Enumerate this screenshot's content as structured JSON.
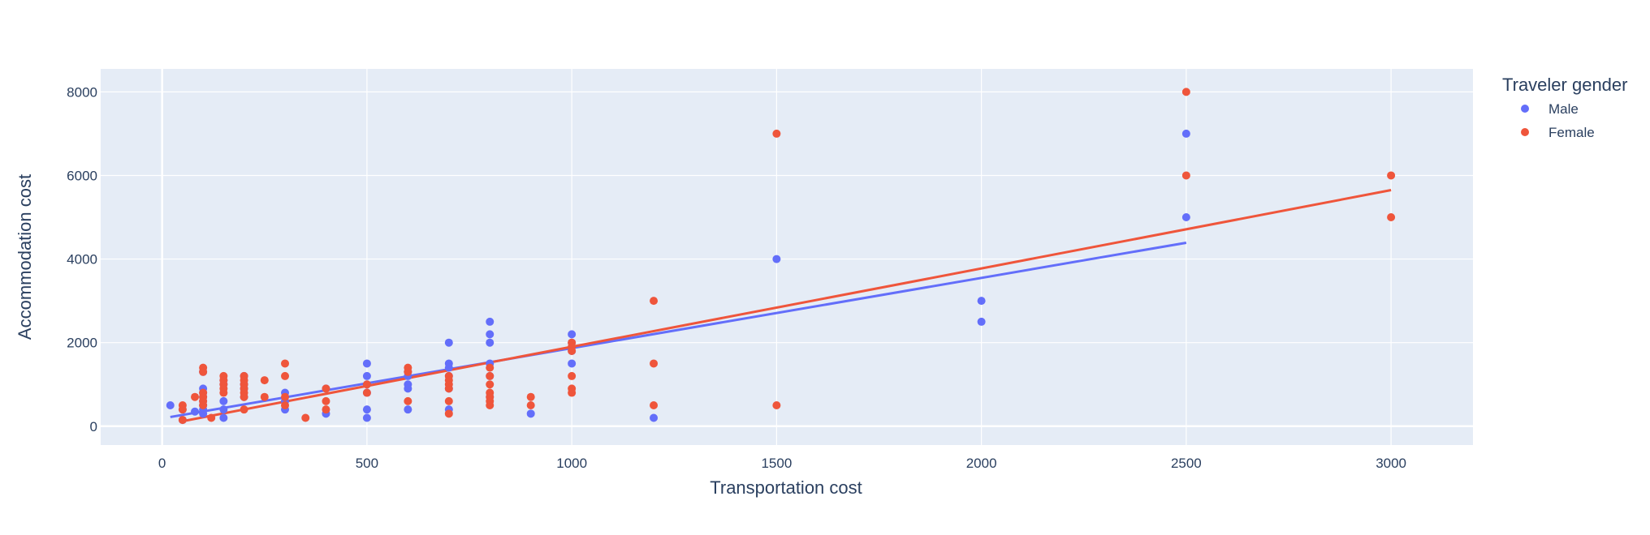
{
  "chart_data": {
    "type": "scatter",
    "xlabel": "Transportation cost",
    "ylabel": "Accommodation cost",
    "xlim": [
      -150,
      3200
    ],
    "ylim": [
      -450,
      8550
    ],
    "xticks": [
      0,
      500,
      1000,
      1500,
      2000,
      2500,
      3000
    ],
    "xtick_labels": [
      "0",
      "500",
      "1000",
      "1500",
      "2000",
      "2500",
      "3000"
    ],
    "yticks": [
      0,
      2000,
      4000,
      6000,
      8000
    ],
    "ytick_labels": [
      "0",
      "2000",
      "4000",
      "6000",
      "8000"
    ],
    "grid": true,
    "plot_background": "#e5ecf6",
    "legend": {
      "title": "Traveler gender",
      "placement": "right"
    },
    "series": [
      {
        "name": "Male",
        "color": "#636efa",
        "points": [
          [
            20,
            500
          ],
          [
            50,
            400
          ],
          [
            50,
            150
          ],
          [
            80,
            350
          ],
          [
            100,
            1300
          ],
          [
            100,
            900
          ],
          [
            100,
            800
          ],
          [
            100,
            700
          ],
          [
            100,
            600
          ],
          [
            100,
            500
          ],
          [
            100,
            400
          ],
          [
            100,
            300
          ],
          [
            150,
            1100
          ],
          [
            150,
            1000
          ],
          [
            150,
            600
          ],
          [
            150,
            400
          ],
          [
            150,
            200
          ],
          [
            200,
            1200
          ],
          [
            200,
            1000
          ],
          [
            200,
            900
          ],
          [
            200,
            700
          ],
          [
            300,
            800
          ],
          [
            300,
            600
          ],
          [
            300,
            400
          ],
          [
            400,
            900
          ],
          [
            400,
            300
          ],
          [
            500,
            1500
          ],
          [
            500,
            1200
          ],
          [
            500,
            1000
          ],
          [
            500,
            800
          ],
          [
            500,
            400
          ],
          [
            500,
            200
          ],
          [
            600,
            1300
          ],
          [
            600,
            1200
          ],
          [
            600,
            1000
          ],
          [
            600,
            900
          ],
          [
            600,
            400
          ],
          [
            700,
            2000
          ],
          [
            700,
            1500
          ],
          [
            700,
            1400
          ],
          [
            700,
            1200
          ],
          [
            700,
            900
          ],
          [
            700,
            400
          ],
          [
            800,
            2500
          ],
          [
            800,
            2200
          ],
          [
            800,
            2000
          ],
          [
            800,
            1500
          ],
          [
            800,
            1200
          ],
          [
            800,
            700
          ],
          [
            900,
            300
          ],
          [
            1000,
            2200
          ],
          [
            1000,
            2000
          ],
          [
            1000,
            1800
          ],
          [
            1000,
            1500
          ],
          [
            1200,
            200
          ],
          [
            1500,
            4000
          ],
          [
            2000,
            3000
          ],
          [
            2000,
            2500
          ],
          [
            2500,
            7000
          ],
          [
            2500,
            5000
          ]
        ],
        "trendline": [
          [
            20,
            220
          ],
          [
            2500,
            4390
          ]
        ]
      },
      {
        "name": "Female",
        "color": "#ef553b",
        "points": [
          [
            50,
            500
          ],
          [
            50,
            400
          ],
          [
            50,
            150
          ],
          [
            80,
            700
          ],
          [
            100,
            1400
          ],
          [
            100,
            1300
          ],
          [
            100,
            800
          ],
          [
            100,
            700
          ],
          [
            100,
            600
          ],
          [
            100,
            500
          ],
          [
            120,
            200
          ],
          [
            150,
            1200
          ],
          [
            150,
            1100
          ],
          [
            150,
            1000
          ],
          [
            150,
            900
          ],
          [
            150,
            800
          ],
          [
            200,
            1200
          ],
          [
            200,
            1100
          ],
          [
            200,
            1000
          ],
          [
            200,
            900
          ],
          [
            200,
            800
          ],
          [
            200,
            700
          ],
          [
            200,
            400
          ],
          [
            250,
            1100
          ],
          [
            250,
            700
          ],
          [
            300,
            1500
          ],
          [
            300,
            1200
          ],
          [
            300,
            700
          ],
          [
            300,
            500
          ],
          [
            350,
            200
          ],
          [
            400,
            900
          ],
          [
            400,
            600
          ],
          [
            400,
            400
          ],
          [
            500,
            1000
          ],
          [
            500,
            800
          ],
          [
            600,
            1400
          ],
          [
            600,
            1300
          ],
          [
            600,
            600
          ],
          [
            700,
            1200
          ],
          [
            700,
            1100
          ],
          [
            700,
            1000
          ],
          [
            700,
            900
          ],
          [
            700,
            600
          ],
          [
            700,
            300
          ],
          [
            800,
            1400
          ],
          [
            800,
            1200
          ],
          [
            800,
            1000
          ],
          [
            800,
            800
          ],
          [
            800,
            700
          ],
          [
            800,
            600
          ],
          [
            800,
            500
          ],
          [
            900,
            700
          ],
          [
            900,
            500
          ],
          [
            1000,
            2000
          ],
          [
            1000,
            1900
          ],
          [
            1000,
            1800
          ],
          [
            1000,
            1200
          ],
          [
            1000,
            900
          ],
          [
            1000,
            800
          ],
          [
            1200,
            3000
          ],
          [
            1200,
            1500
          ],
          [
            1200,
            500
          ],
          [
            1500,
            7000
          ],
          [
            1500,
            500
          ],
          [
            2500,
            8000
          ],
          [
            2500,
            6000
          ],
          [
            3000,
            6000
          ],
          [
            3000,
            5000
          ]
        ],
        "trendline": [
          [
            50,
            120
          ],
          [
            3000,
            5650
          ]
        ]
      }
    ]
  }
}
